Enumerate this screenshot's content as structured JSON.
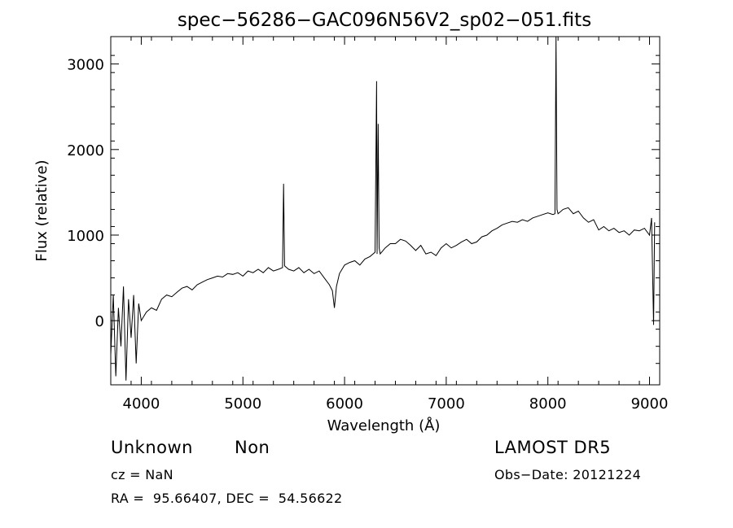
{
  "chart_data": {
    "type": "line",
    "title": "spec−56286−GAC096N56V2_sp02−051.fits",
    "xlabel": "Wavelength (Å)",
    "ylabel": "Flux (relative)",
    "xlim": [
      3700,
      9100
    ],
    "ylim": [
      -750,
      3320
    ],
    "x_ticks": [
      4000,
      5000,
      6000,
      7000,
      8000,
      9000
    ],
    "y_ticks": [
      0,
      1000,
      2000,
      3000
    ],
    "grid": false,
    "series": [
      {
        "x": [
          3700,
          3725,
          3750,
          3775,
          3800,
          3825,
          3850,
          3875,
          3900,
          3925,
          3950,
          3975,
          4000,
          4050,
          4100,
          4150,
          4200,
          4250,
          4300,
          4350,
          4400,
          4450,
          4500,
          4550,
          4600,
          4650,
          4700,
          4750,
          4800,
          4850,
          4900,
          4950,
          5000,
          5050,
          5100,
          5150,
          5200,
          5250,
          5300,
          5350,
          5390,
          5400,
          5410,
          5450,
          5500,
          5550,
          5600,
          5650,
          5700,
          5750,
          5800,
          5850,
          5880,
          5900,
          5920,
          5950,
          6000,
          6050,
          6100,
          6150,
          6200,
          6250,
          6300,
          6315,
          6320,
          6330,
          6340,
          6350,
          6400,
          6450,
          6500,
          6550,
          6600,
          6650,
          6700,
          6750,
          6800,
          6850,
          6900,
          6950,
          7000,
          7050,
          7100,
          7150,
          7200,
          7250,
          7300,
          7350,
          7400,
          7450,
          7500,
          7550,
          7600,
          7650,
          7700,
          7750,
          7800,
          7850,
          7900,
          7950,
          8000,
          8050,
          8070,
          8080,
          8090,
          8100,
          8150,
          8200,
          8250,
          8300,
          8350,
          8400,
          8450,
          8500,
          8550,
          8600,
          8650,
          8700,
          8750,
          8800,
          8850,
          8900,
          8950,
          9000,
          9020,
          9040,
          9050
        ],
        "values": [
          -400,
          300,
          -650,
          150,
          -300,
          400,
          -700,
          250,
          -200,
          300,
          -500,
          200,
          0,
          100,
          150,
          120,
          250,
          300,
          280,
          330,
          380,
          400,
          360,
          420,
          450,
          480,
          500,
          520,
          510,
          550,
          540,
          560,
          520,
          580,
          560,
          600,
          560,
          620,
          580,
          600,
          620,
          1600,
          640,
          600,
          580,
          620,
          560,
          600,
          550,
          580,
          500,
          420,
          350,
          150,
          400,
          550,
          650,
          680,
          700,
          650,
          720,
          750,
          800,
          2800,
          780,
          2300,
          850,
          780,
          850,
          900,
          900,
          950,
          930,
          880,
          820,
          880,
          780,
          800,
          760,
          850,
          900,
          850,
          880,
          920,
          950,
          900,
          920,
          980,
          1000,
          1050,
          1080,
          1120,
          1140,
          1160,
          1150,
          1180,
          1160,
          1200,
          1220,
          1240,
          1260,
          1240,
          1250,
          3320,
          1300,
          1250,
          1300,
          1320,
          1250,
          1280,
          1200,
          1150,
          1180,
          1060,
          1100,
          1050,
          1080,
          1030,
          1050,
          1000,
          1060,
          1050,
          1080,
          1000,
          1200,
          -50,
          1150
        ]
      }
    ]
  },
  "info": {
    "object_class": "Unknown",
    "subclass": "Non",
    "cz_label": "cz = NaN",
    "ra_dec": "RA =  95.66407, DEC =  54.56622",
    "survey": "LAMOST DR5",
    "obs_date": "Obs−Date: 20121224"
  }
}
